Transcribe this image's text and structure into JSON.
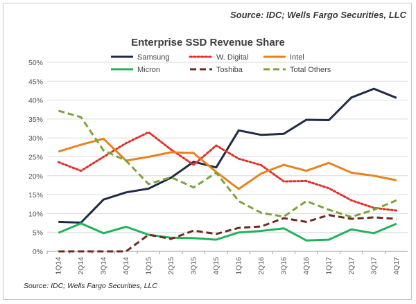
{
  "source_top": "Source: IDC; Wells Fargo Securities, LLC",
  "source_bottom": "Source: IDC; Wells Fargo Securities, LLC",
  "chart_data": {
    "type": "line",
    "title": "Enterprise SSD Revenue Share",
    "xlabel": "",
    "ylabel": "",
    "ylim": [
      0,
      50
    ],
    "y_ticks": [
      "0%",
      "5%",
      "10%",
      "15%",
      "20%",
      "25%",
      "30%",
      "35%",
      "40%",
      "45%",
      "50%"
    ],
    "grid": true,
    "legend_position": "top",
    "categories": [
      "1Q14",
      "2Q14",
      "3Q14",
      "4Q14",
      "1Q15",
      "2Q15",
      "3Q15",
      "4Q15",
      "1Q16",
      "2Q16",
      "3Q16",
      "4Q16",
      "1Q17",
      "2Q17",
      "3Q17",
      "4Q17"
    ],
    "series": [
      {
        "name": "Samsung",
        "color": "#1f2a44",
        "style": "solid",
        "values": [
          7.8,
          7.6,
          13.7,
          15.6,
          16.6,
          19.5,
          23.7,
          22.2,
          32.0,
          30.8,
          31.1,
          34.8,
          34.7,
          40.7,
          43.0,
          40.6
        ]
      },
      {
        "name": "W. Digital",
        "color": "#e0302a",
        "style": "dotted",
        "values": [
          23.6,
          21.3,
          25.0,
          28.6,
          31.5,
          26.9,
          22.9,
          28.0,
          24.5,
          22.8,
          18.5,
          18.6,
          16.7,
          13.5,
          11.5,
          10.8
        ]
      },
      {
        "name": "Intel",
        "color": "#e8821e",
        "style": "solid",
        "values": [
          26.4,
          28.2,
          29.8,
          24.0,
          25.0,
          26.2,
          26.0,
          21.0,
          16.5,
          20.6,
          22.9,
          21.3,
          23.4,
          20.8,
          20.0,
          18.8
        ]
      },
      {
        "name": "Micron",
        "color": "#21b35a",
        "style": "solid",
        "values": [
          4.9,
          7.4,
          4.8,
          6.5,
          4.4,
          3.6,
          3.5,
          3.1,
          5.0,
          5.4,
          6.1,
          2.9,
          3.1,
          5.8,
          4.8,
          7.3
        ]
      },
      {
        "name": "Toshiba",
        "color": "#6e2a22",
        "style": "dashed",
        "values": [
          0,
          0,
          0,
          0,
          4.4,
          3.3,
          5.5,
          4.6,
          6.2,
          6.6,
          8.8,
          7.8,
          9.6,
          8.6,
          9.0,
          8.6
        ]
      },
      {
        "name": "Total Others",
        "color": "#7ea23a",
        "style": "dashed",
        "values": [
          37.2,
          35.5,
          26.7,
          24.0,
          17.8,
          19.6,
          16.9,
          20.8,
          13.3,
          10.2,
          9.2,
          13.3,
          11.0,
          9.1,
          11.0,
          13.5
        ]
      }
    ]
  }
}
